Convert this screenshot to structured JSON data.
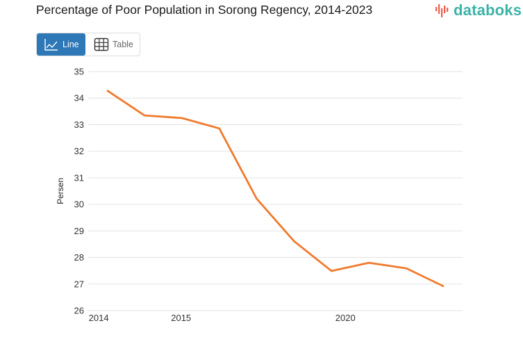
{
  "header": {
    "title": "Percentage of Poor Population in Sorong Regency, 2014-2023",
    "brand": "databoks"
  },
  "view_toggle": {
    "options": [
      {
        "label": "Line",
        "icon": "line-chart-icon",
        "active": true
      },
      {
        "label": "Table",
        "icon": "table-grid-icon",
        "active": false
      }
    ]
  },
  "colors": {
    "line": "#f07a2d",
    "active_button": "#2e78b7",
    "brand_text": "#3bb3a7",
    "gridline": "#e3e3e3"
  },
  "chart_data": {
    "type": "line",
    "title": "Percentage of Poor Population in Sorong Regency, 2014-2023",
    "xlabel": "",
    "ylabel": "Persen",
    "x": [
      2014,
      2015,
      2016,
      2017,
      2018,
      2019,
      2020,
      2021,
      2022,
      2023
    ],
    "series": [
      {
        "name": "Persen",
        "values": [
          34.29,
          33.35,
          33.25,
          32.86,
          30.21,
          28.61,
          27.49,
          27.8,
          27.59,
          26.91
        ]
      }
    ],
    "ylim": [
      26,
      35
    ],
    "yticks": [
      26,
      27,
      28,
      29,
      30,
      31,
      32,
      33,
      34,
      35
    ],
    "xtick_labels": [
      {
        "label": "2014",
        "at": 2013.78
      },
      {
        "label": "2015",
        "at": 2015.98
      },
      {
        "label": "2020",
        "at": 2020.37
      }
    ],
    "grid": true,
    "legend": "none"
  }
}
